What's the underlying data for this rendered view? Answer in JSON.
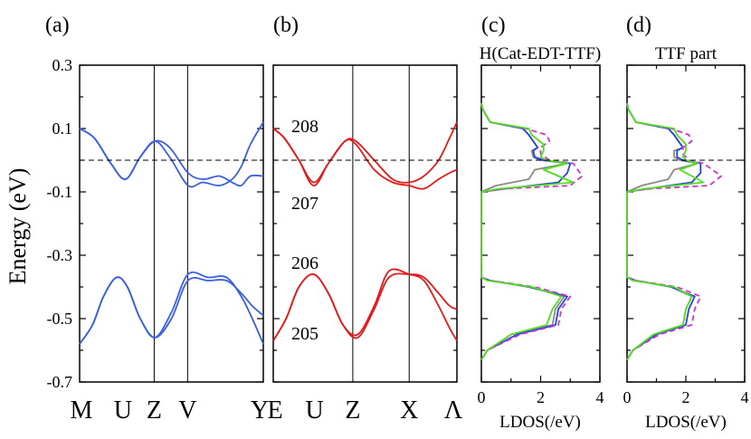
{
  "chart_data": [
    {
      "panel_label": "(a)",
      "type": "line",
      "ylabel": "Energy (eV)",
      "ylim": [
        -0.7,
        0.3
      ],
      "yticks": [
        0.3,
        0.1,
        -0.1,
        -0.3,
        -0.5,
        -0.7
      ],
      "ytick_labels": [
        "0.3",
        "0.1",
        "-0.1",
        "-0.3",
        "-0.5",
        "-0.7"
      ],
      "kpoint_labels": [
        "M",
        "U",
        "Z",
        "V",
        "Y"
      ],
      "kpoint_positions": [
        0,
        0.236,
        0.406,
        0.588,
        1.0
      ],
      "vlines": [
        0.406,
        0.588
      ],
      "fermi_level": 0.0,
      "color": "#3a5fe0",
      "series": [
        {
          "name": "band 1",
          "x": [
            0,
            0.08,
            0.17,
            0.25,
            0.33,
            0.41,
            0.49,
            0.59,
            0.67,
            0.76,
            0.83,
            0.88,
            0.93,
            1.0
          ],
          "y": [
            0.1,
            0.07,
            -0.01,
            -0.06,
            0.01,
            0.06,
            0.04,
            -0.04,
            -0.06,
            -0.05,
            -0.07,
            -0.08,
            -0.05,
            -0.05
          ]
        },
        {
          "name": "band 2",
          "x": [
            0,
            0.08,
            0.17,
            0.25,
            0.33,
            0.41,
            0.49,
            0.59,
            0.67,
            0.76,
            0.83,
            0.88,
            0.93,
            1.0
          ],
          "y": [
            0.1,
            0.07,
            -0.01,
            -0.06,
            0.01,
            0.06,
            0.01,
            -0.08,
            -0.07,
            -0.08,
            -0.06,
            -0.02,
            0.05,
            0.12
          ]
        },
        {
          "name": "band 3",
          "x": [
            0,
            0.07,
            0.13,
            0.2,
            0.26,
            0.33,
            0.41,
            0.5,
            0.59,
            0.7,
            0.8,
            0.88,
            0.94,
            1.0
          ],
          "y": [
            -0.58,
            -0.52,
            -0.43,
            -0.37,
            -0.4,
            -0.5,
            -0.56,
            -0.48,
            -0.36,
            -0.37,
            -0.37,
            -0.43,
            -0.5,
            -0.58
          ]
        },
        {
          "name": "band 4",
          "x": [
            0,
            0.07,
            0.13,
            0.2,
            0.26,
            0.33,
            0.41,
            0.5,
            0.59,
            0.7,
            0.8,
            0.88,
            0.94,
            1.0
          ],
          "y": [
            -0.58,
            -0.52,
            -0.43,
            -0.37,
            -0.4,
            -0.5,
            -0.56,
            -0.5,
            -0.38,
            -0.38,
            -0.38,
            -0.42,
            -0.46,
            -0.49
          ]
        }
      ]
    },
    {
      "panel_label": "(b)",
      "type": "line",
      "ylim": [
        -0.7,
        0.3
      ],
      "kpoint_labels": [
        "E",
        "U",
        "Z",
        "X",
        "Λ"
      ],
      "kpoint_positions": [
        0,
        0.225,
        0.433,
        0.74,
        1.0
      ],
      "vlines": [
        0.433,
        0.74
      ],
      "fermi_level": 0.0,
      "color": "#e41a1a",
      "band_labels": [
        "208",
        "207",
        "206",
        "205"
      ],
      "series": [
        {
          "name": "band 208",
          "x": [
            0,
            0.06,
            0.14,
            0.22,
            0.3,
            0.39,
            0.45,
            0.55,
            0.65,
            0.74,
            0.82,
            0.9,
            0.96,
            1.0
          ],
          "y": [
            0.1,
            0.07,
            0.0,
            -0.07,
            -0.01,
            0.06,
            0.06,
            0.0,
            -0.06,
            -0.07,
            -0.05,
            0.0,
            0.07,
            0.12
          ]
        },
        {
          "name": "band 207",
          "x": [
            0,
            0.06,
            0.14,
            0.22,
            0.3,
            0.39,
            0.45,
            0.55,
            0.65,
            0.74,
            0.82,
            0.9,
            0.96,
            1.0
          ],
          "y": [
            0.1,
            0.07,
            0.0,
            -0.08,
            -0.01,
            0.06,
            0.05,
            -0.03,
            -0.07,
            -0.08,
            -0.09,
            -0.06,
            -0.04,
            -0.03
          ]
        },
        {
          "name": "band 206",
          "x": [
            0,
            0.07,
            0.14,
            0.22,
            0.3,
            0.38,
            0.46,
            0.55,
            0.63,
            0.74,
            0.82,
            0.9,
            0.96,
            1.0
          ],
          "y": [
            -0.57,
            -0.5,
            -0.4,
            -0.36,
            -0.42,
            -0.52,
            -0.55,
            -0.46,
            -0.35,
            -0.36,
            -0.38,
            -0.46,
            -0.53,
            -0.57
          ]
        },
        {
          "name": "band 205",
          "x": [
            0,
            0.07,
            0.14,
            0.22,
            0.3,
            0.38,
            0.46,
            0.55,
            0.63,
            0.74,
            0.82,
            0.9,
            0.96,
            1.0
          ],
          "y": [
            -0.57,
            -0.5,
            -0.4,
            -0.36,
            -0.42,
            -0.52,
            -0.56,
            -0.47,
            -0.37,
            -0.36,
            -0.37,
            -0.42,
            -0.46,
            -0.47
          ]
        }
      ]
    },
    {
      "panel_label": "(c)",
      "type": "line",
      "title": "H(Cat-EDT-TTF)",
      "xlabel": "LDOS(/eV)",
      "xlim": [
        0,
        4
      ],
      "xtick_labels": [
        "0",
        "2",
        "4"
      ],
      "ylim": [
        -0.7,
        0.3
      ],
      "fermi_level": 0.0,
      "series": [
        {
          "name": "gray",
          "color": "#8a8a8a",
          "dash": false,
          "x": [
            0.0,
            0.05,
            0.3,
            1.4,
            1.6,
            1.9,
            1.7,
            1.75,
            2.0,
            2.9,
            1.8,
            1.6,
            0.5,
            0.0,
            0.0,
            0.3,
            1.6,
            2.8,
            2.5,
            2.4,
            1.0,
            0.2,
            0.0
          ],
          "y": [
            0.18,
            0.16,
            0.12,
            0.1,
            0.08,
            0.04,
            0.03,
            0.01,
            0.0,
            -0.01,
            -0.03,
            -0.06,
            -0.08,
            -0.1,
            -0.37,
            -0.38,
            -0.4,
            -0.43,
            -0.47,
            -0.52,
            -0.55,
            -0.6,
            -0.63
          ]
        },
        {
          "name": "blue",
          "color": "#2244dd",
          "dash": false,
          "x": [
            0.0,
            0.05,
            0.3,
            1.4,
            1.6,
            1.9,
            1.75,
            1.8,
            2.1,
            3.0,
            2.9,
            2.6,
            0.8,
            0.0,
            0.0,
            0.3,
            1.6,
            2.9,
            2.6,
            2.5,
            1.2,
            0.2,
            0.0
          ],
          "y": [
            0.18,
            0.16,
            0.12,
            0.1,
            0.08,
            0.04,
            0.03,
            0.01,
            0.0,
            -0.01,
            -0.04,
            -0.07,
            -0.09,
            -0.1,
            -0.37,
            -0.38,
            -0.4,
            -0.43,
            -0.47,
            -0.52,
            -0.55,
            -0.6,
            -0.63
          ]
        },
        {
          "name": "magenta dashed",
          "color": "#cc33cc",
          "dash": true,
          "x": [
            0.0,
            0.05,
            0.3,
            1.5,
            2.2,
            2.3,
            2.0,
            2.0,
            2.3,
            3.1,
            3.4,
            3.0,
            0.8,
            0.0,
            0.0,
            0.3,
            1.8,
            3.0,
            2.7,
            2.6,
            1.3,
            0.2,
            0.0
          ],
          "y": [
            0.18,
            0.16,
            0.12,
            0.1,
            0.08,
            0.06,
            0.04,
            0.02,
            0.0,
            -0.01,
            -0.05,
            -0.08,
            -0.09,
            -0.1,
            -0.37,
            -0.38,
            -0.4,
            -0.43,
            -0.47,
            -0.52,
            -0.55,
            -0.6,
            -0.63
          ]
        },
        {
          "name": "green",
          "color": "#55dd22",
          "dash": false,
          "x": [
            0.0,
            0.05,
            0.3,
            1.6,
            1.7,
            2.1,
            2.1,
            2.0,
            2.2,
            2.9,
            2.1,
            3.1,
            0.6,
            0.0,
            0.0,
            0.2,
            1.7,
            2.7,
            2.4,
            2.2,
            1.0,
            0.2,
            0.0
          ],
          "y": [
            0.18,
            0.16,
            0.12,
            0.1,
            0.08,
            0.05,
            0.03,
            0.01,
            0.0,
            -0.01,
            -0.03,
            -0.07,
            -0.09,
            -0.1,
            -0.37,
            -0.38,
            -0.4,
            -0.43,
            -0.47,
            -0.52,
            -0.55,
            -0.6,
            -0.63
          ]
        }
      ]
    },
    {
      "panel_label": "(d)",
      "type": "line",
      "title": "TTF part",
      "xlabel": "LDOS(/eV)",
      "xlim": [
        0,
        4
      ],
      "xtick_labels": [
        "0",
        "2",
        "4"
      ],
      "ylim": [
        -0.7,
        0.3
      ],
      "fermi_level": 0.0,
      "series": [
        {
          "name": "gray",
          "color": "#8a8a8a",
          "dash": false,
          "x": [
            0.0,
            0.05,
            0.3,
            1.4,
            1.6,
            1.9,
            1.6,
            1.6,
            1.8,
            2.4,
            1.6,
            1.4,
            0.5,
            0.0,
            0.0,
            0.3,
            1.5,
            2.2,
            2.0,
            1.9,
            0.9,
            0.2,
            0.0
          ],
          "y": [
            0.18,
            0.16,
            0.12,
            0.1,
            0.08,
            0.04,
            0.03,
            0.01,
            0.0,
            -0.01,
            -0.03,
            -0.06,
            -0.08,
            -0.1,
            -0.37,
            -0.38,
            -0.4,
            -0.43,
            -0.47,
            -0.52,
            -0.55,
            -0.6,
            -0.63
          ]
        },
        {
          "name": "blue",
          "color": "#2244dd",
          "dash": false,
          "x": [
            0.0,
            0.05,
            0.3,
            1.4,
            1.6,
            1.9,
            1.7,
            1.7,
            1.9,
            2.5,
            2.5,
            2.2,
            0.7,
            0.0,
            0.0,
            0.3,
            1.5,
            2.3,
            2.1,
            2.0,
            1.0,
            0.2,
            0.0
          ],
          "y": [
            0.18,
            0.16,
            0.12,
            0.1,
            0.08,
            0.04,
            0.03,
            0.01,
            0.0,
            -0.01,
            -0.04,
            -0.07,
            -0.09,
            -0.1,
            -0.37,
            -0.38,
            -0.4,
            -0.43,
            -0.47,
            -0.52,
            -0.55,
            -0.6,
            -0.63
          ]
        },
        {
          "name": "magenta dashed",
          "color": "#cc33cc",
          "dash": true,
          "x": [
            0.0,
            0.05,
            0.3,
            1.5,
            2.1,
            2.2,
            1.9,
            1.9,
            2.1,
            2.6,
            3.2,
            2.8,
            0.8,
            0.0,
            0.0,
            0.3,
            1.7,
            2.5,
            2.3,
            2.2,
            1.1,
            0.2,
            0.0
          ],
          "y": [
            0.18,
            0.16,
            0.12,
            0.1,
            0.08,
            0.06,
            0.04,
            0.02,
            0.0,
            -0.01,
            -0.05,
            -0.08,
            -0.09,
            -0.1,
            -0.37,
            -0.38,
            -0.4,
            -0.43,
            -0.47,
            -0.52,
            -0.55,
            -0.6,
            -0.63
          ]
        },
        {
          "name": "green",
          "color": "#55dd22",
          "dash": false,
          "x": [
            0.0,
            0.05,
            0.3,
            1.6,
            1.7,
            2.0,
            2.0,
            1.9,
            2.0,
            2.4,
            1.8,
            2.6,
            0.6,
            0.0,
            0.0,
            0.2,
            1.6,
            2.2,
            2.0,
            1.9,
            0.9,
            0.2,
            0.0
          ],
          "y": [
            0.18,
            0.16,
            0.12,
            0.1,
            0.08,
            0.05,
            0.03,
            0.01,
            0.0,
            -0.01,
            -0.03,
            -0.07,
            -0.09,
            -0.1,
            -0.37,
            -0.38,
            -0.4,
            -0.43,
            -0.47,
            -0.52,
            -0.55,
            -0.6,
            -0.63
          ]
        }
      ]
    }
  ]
}
